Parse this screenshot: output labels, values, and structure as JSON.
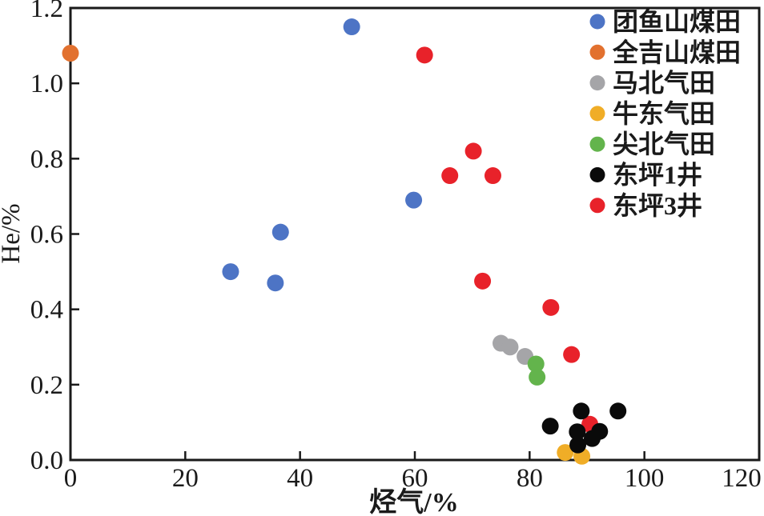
{
  "figure": {
    "background": "#ffffff",
    "frame_color": "#1a1a1a",
    "text_color": "#1a1a1a"
  },
  "chart_data": {
    "type": "scatter",
    "title": "",
    "xlabel": "烃气/%",
    "ylabel": "He/%",
    "xlim": [
      0,
      120
    ],
    "ylim": [
      0.0,
      1.2
    ],
    "x_tick_labels": [
      "0",
      "20",
      "40",
      "60",
      "80",
      "100",
      "120"
    ],
    "y_tick_labels": [
      "0.0",
      "0.2",
      "0.4",
      "0.6",
      "0.8",
      "1.0",
      "1.2"
    ],
    "grid": false,
    "legend_position": "inside-top-right",
    "marker": "circle",
    "series": [
      {
        "name": "团鱼山煤田",
        "color": "#4D74C5",
        "points": [
          [
            49,
            1.15
          ],
          [
            59.8,
            0.69
          ],
          [
            36.6,
            0.605
          ],
          [
            27.9,
            0.5
          ],
          [
            35.7,
            0.47
          ]
        ]
      },
      {
        "name": "全吉山煤田",
        "color": "#E2712F",
        "points": [
          [
            0,
            1.08
          ]
        ]
      },
      {
        "name": "马北气田",
        "color": "#A5A5A8",
        "points": [
          [
            75,
            0.31
          ],
          [
            76.6,
            0.3
          ],
          [
            79.2,
            0.275
          ]
        ]
      },
      {
        "name": "牛东气田",
        "color": "#F0AD27",
        "points": [
          [
            86.2,
            0.02
          ],
          [
            89.1,
            0.01
          ]
        ]
      },
      {
        "name": "尖北气田",
        "color": "#63B44C",
        "points": [
          [
            81.1,
            0.255
          ],
          [
            81.3,
            0.22
          ]
        ]
      },
      {
        "name": "东坪1井",
        "color": "#0A0A0A",
        "points": [
          [
            89.0,
            0.13
          ],
          [
            95.4,
            0.13
          ],
          [
            83.6,
            0.09
          ],
          [
            88.3,
            0.075
          ],
          [
            92.2,
            0.076
          ],
          [
            90.9,
            0.057
          ],
          [
            88.4,
            0.04
          ]
        ]
      },
      {
        "name": "东坪3井",
        "color": "#E8222A",
        "points": [
          [
            61.7,
            1.075
          ],
          [
            70.2,
            0.82
          ],
          [
            66.1,
            0.755
          ],
          [
            73.6,
            0.755
          ],
          [
            71.8,
            0.475
          ],
          [
            83.7,
            0.405
          ],
          [
            87.3,
            0.28
          ],
          [
            90.5,
            0.095
          ]
        ]
      }
    ]
  }
}
